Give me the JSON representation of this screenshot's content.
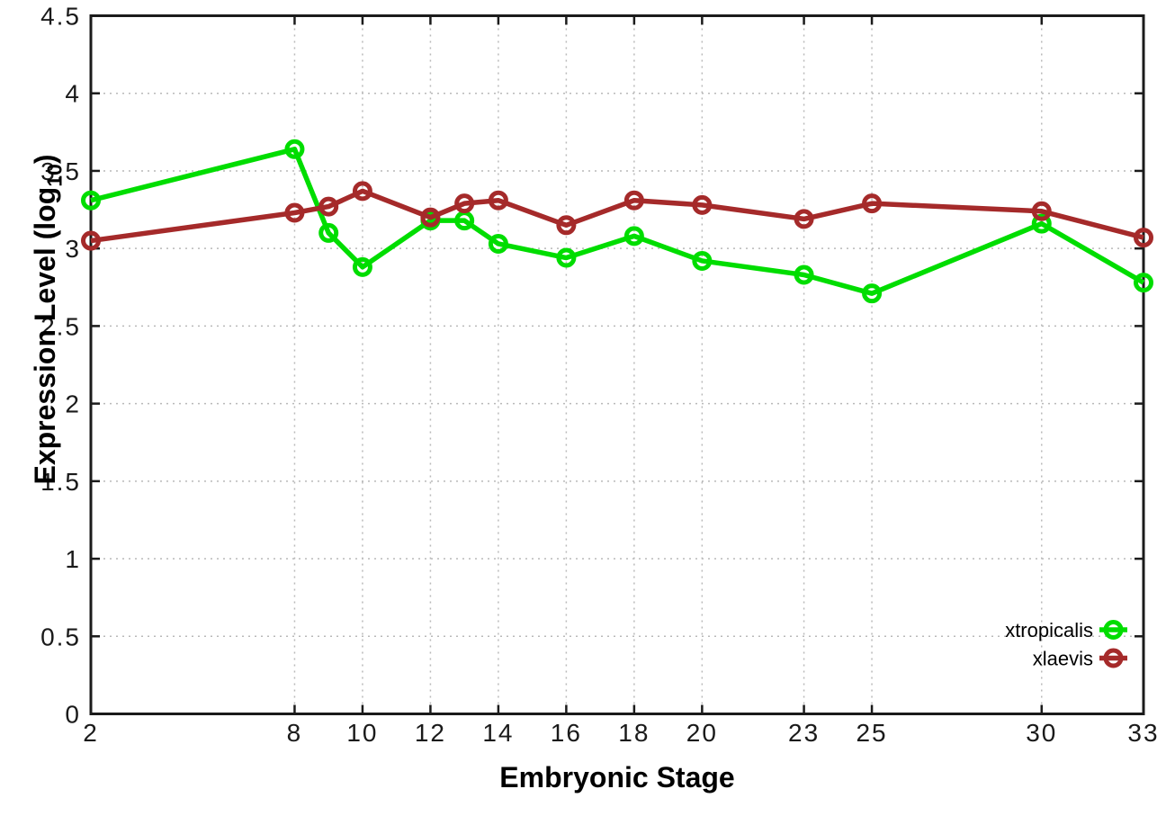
{
  "figure": {
    "xlabel": "Embryonic Stage",
    "ylabel_prefix": "Expression Level (log",
    "ylabel_subscript": "10",
    "ylabel_suffix": ")"
  },
  "colors": {
    "xtropicalis": "#00dd00",
    "xlaevis": "#a52a2a",
    "grid": "#b9b9b9",
    "axis": "#1b1b1b",
    "tick_text": "#1a1a1a"
  },
  "chart_data": {
    "type": "line",
    "title": "",
    "xlabel": "Embryonic Stage",
    "ylabel": "Expression Level (log10)",
    "x": [
      2,
      8,
      9,
      10,
      12,
      13,
      14,
      16,
      18,
      20,
      23,
      25,
      30,
      33
    ],
    "x_tick_labels": [
      2,
      8,
      10,
      12,
      14,
      16,
      18,
      20,
      23,
      25,
      30,
      33
    ],
    "y_tick_labels": [
      0,
      0.5,
      1,
      1.5,
      2,
      2.5,
      3,
      3.5,
      4,
      4.5
    ],
    "xlim": [
      2,
      33
    ],
    "ylim": [
      0,
      4.5
    ],
    "grid": true,
    "legend_position": "bottom-right",
    "series": [
      {
        "name": "xtropicalis",
        "color": "#00dd00",
        "values": [
          3.31,
          3.64,
          3.1,
          2.88,
          3.18,
          3.18,
          3.03,
          2.94,
          3.08,
          2.92,
          2.83,
          2.71,
          3.16,
          2.78
        ]
      },
      {
        "name": "xlaevis",
        "color": "#a52a2a",
        "values": [
          3.05,
          3.23,
          3.27,
          3.37,
          3.2,
          3.29,
          3.31,
          3.15,
          3.31,
          3.28,
          3.19,
          3.29,
          3.24,
          3.07
        ]
      }
    ]
  }
}
